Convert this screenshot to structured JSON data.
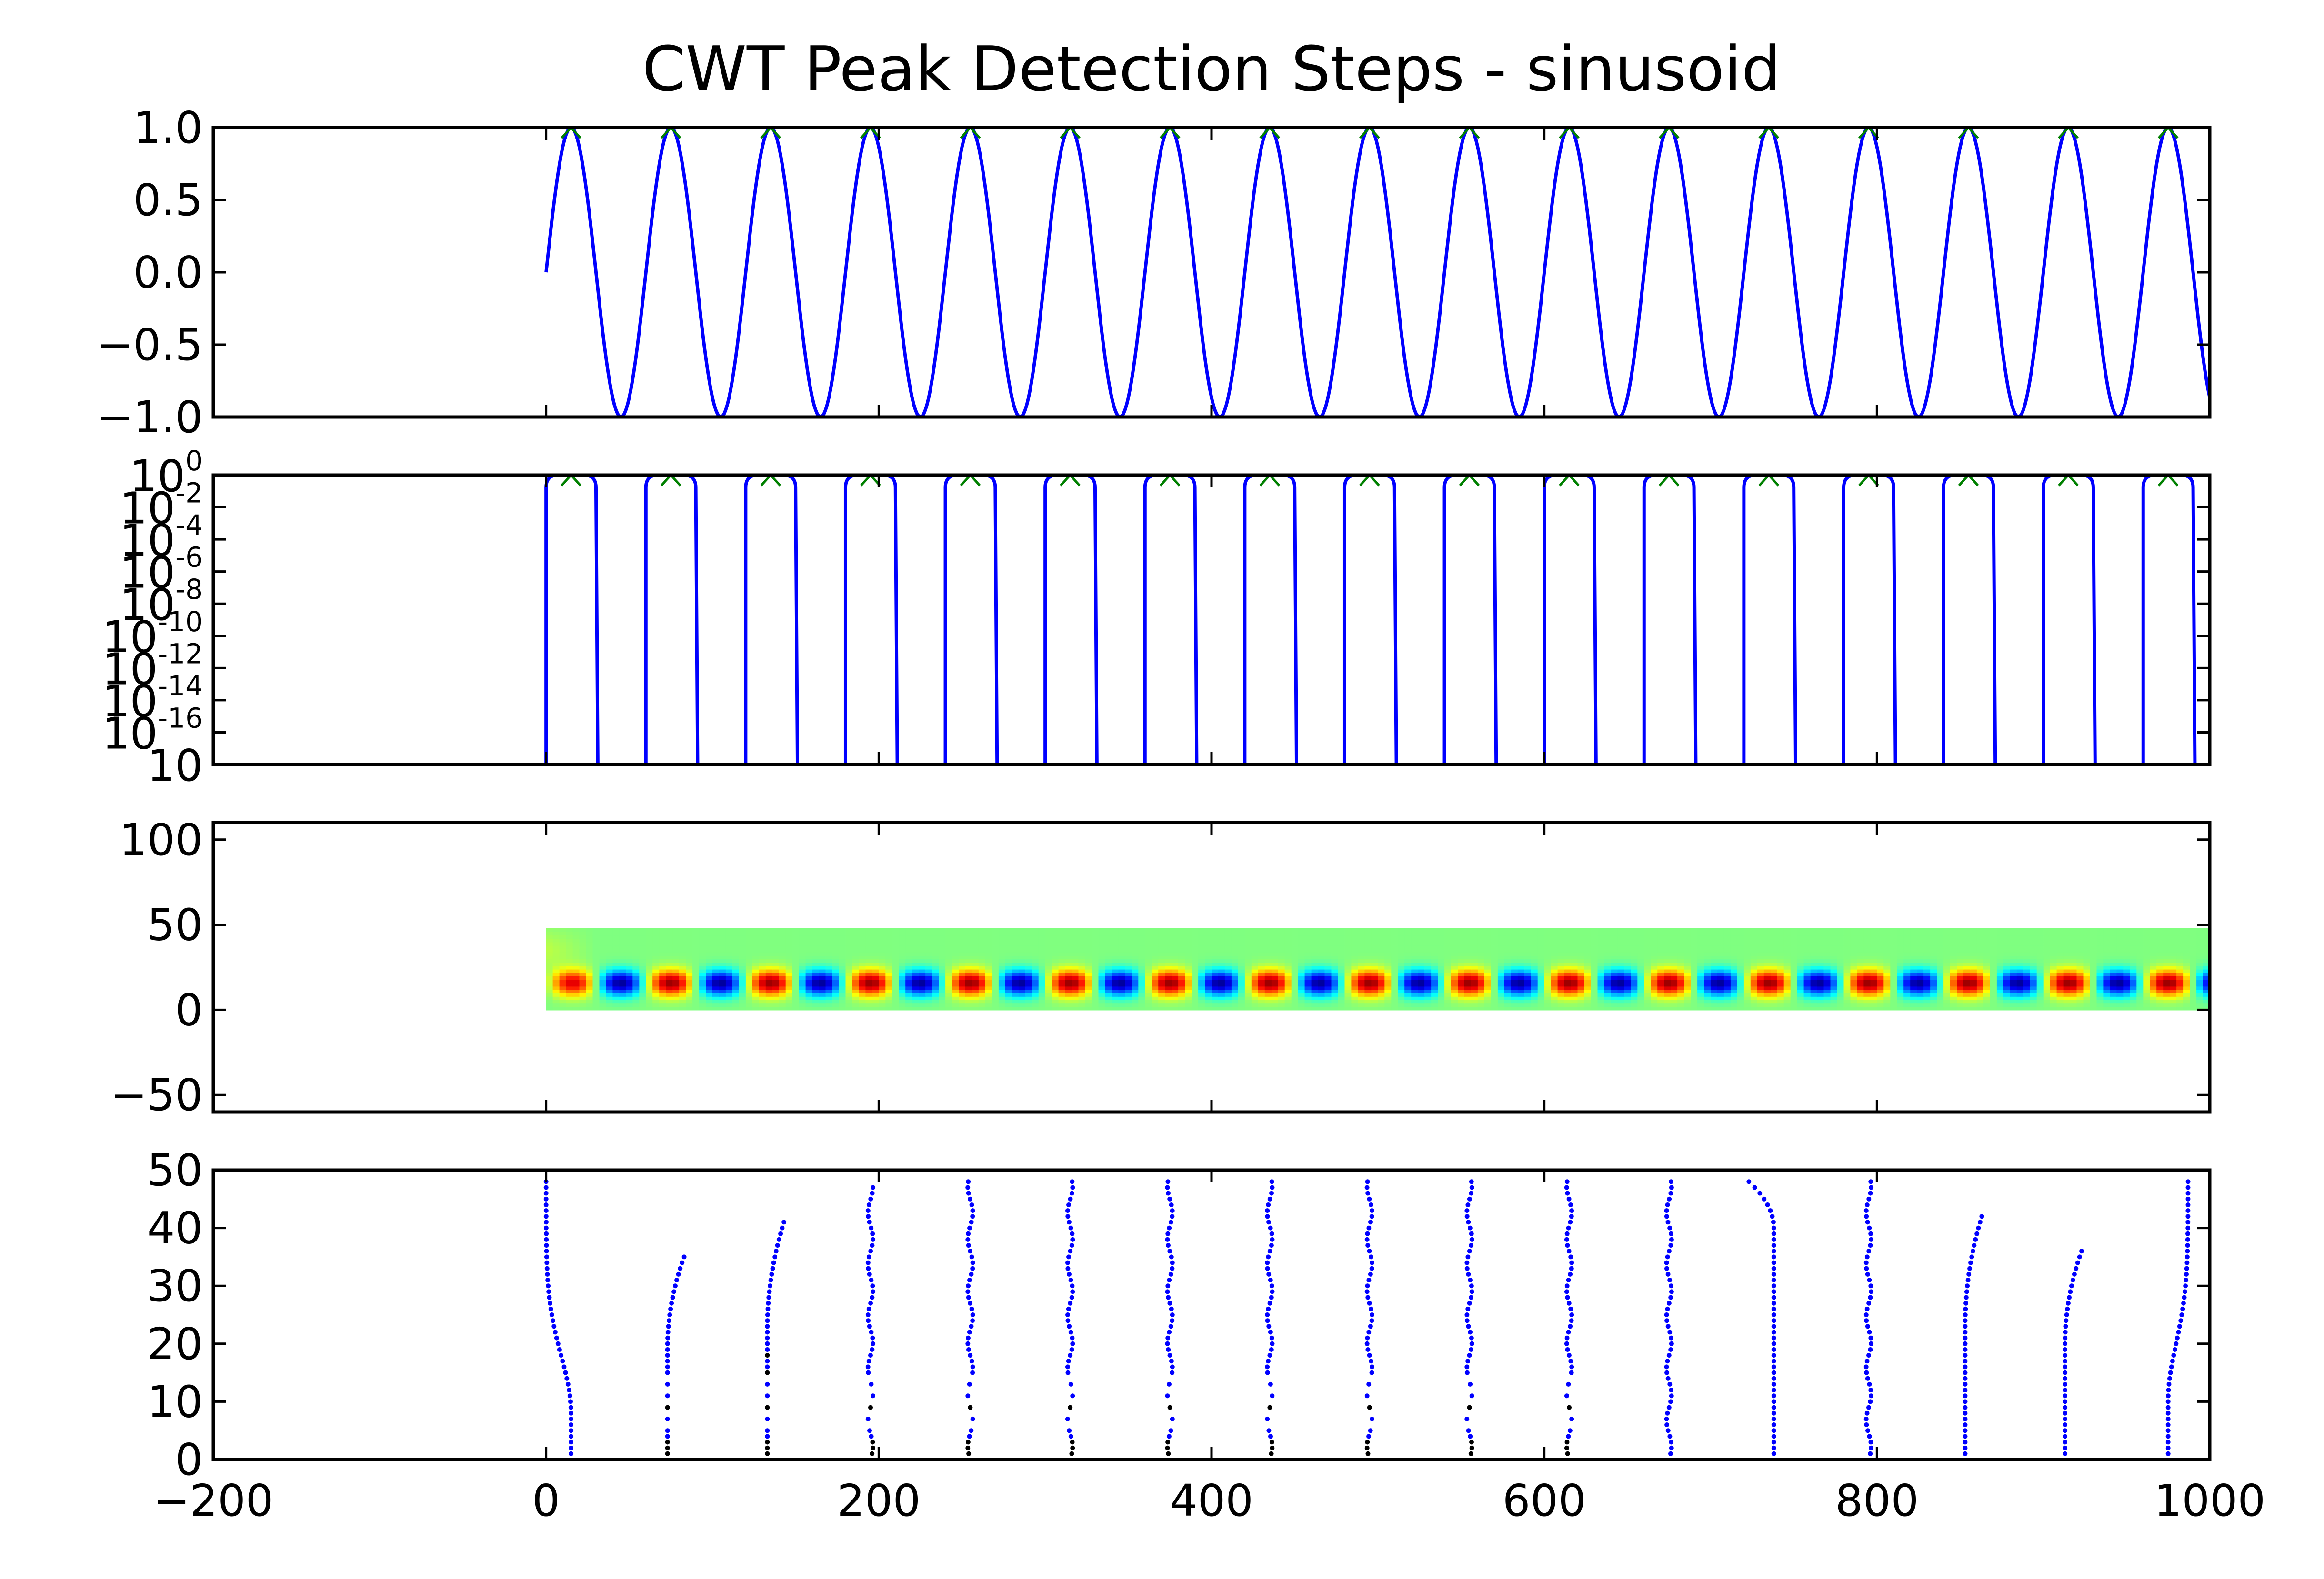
{
  "chart_data": [
    {
      "type": "line",
      "title": "CWT Peak Detection Steps - sinusoid",
      "signal": "sinusoid",
      "x_domain": [
        0,
        1000
      ],
      "period": 60,
      "amplitude": 1,
      "peak_markers_x": [
        15,
        75,
        135,
        195,
        255,
        315,
        375,
        435,
        495,
        555,
        615,
        675,
        735,
        795,
        855,
        915,
        975
      ],
      "xlim": [
        -200,
        1000
      ],
      "ylim": [
        -1.0,
        1.0
      ],
      "xticks": [
        "-200",
        "0",
        "200",
        "400",
        "600",
        "800",
        "1000"
      ],
      "yticks": [
        "1.0",
        "0.5",
        "0.0",
        "−0.5",
        "−1.0"
      ],
      "show_xticklabels": false,
      "line_color": "#0000ff",
      "marker_color": "#008000"
    },
    {
      "type": "line",
      "yscale": "log",
      "xlim": [
        -200,
        1000
      ],
      "ylim_exponents": [
        -18,
        0
      ],
      "ytick_base": "10",
      "ytick_exponents": [
        "0",
        "-2",
        "-4",
        "-6",
        "-8",
        "-10",
        "-12",
        "-14",
        "-16",
        ""
      ],
      "pulse_rises_x": [
        0,
        60,
        120,
        180,
        240,
        300,
        360,
        420,
        480,
        540,
        600,
        660,
        720,
        780,
        840,
        900,
        960
      ],
      "pulse_falls_x": [
        30,
        90,
        150,
        210,
        270,
        330,
        390,
        450,
        510,
        570,
        630,
        690,
        750,
        810,
        870,
        930,
        990
      ],
      "peak_markers_x": [
        15,
        75,
        135,
        195,
        255,
        315,
        375,
        435,
        495,
        555,
        615,
        675,
        735,
        795,
        855,
        915,
        975
      ],
      "show_xticklabels": false,
      "line_color": "#0000ff",
      "marker_color": "#008000"
    },
    {
      "type": "heatmap",
      "colormap": "jet",
      "extent_x": [
        0,
        1000
      ],
      "extent_y": [
        0,
        48
      ],
      "band_center_y": 16,
      "blob_spacing_x": 30,
      "xlim": [
        -200,
        1000
      ],
      "ylim": [
        -60,
        110
      ],
      "yticks": [
        "100",
        "50",
        "0",
        "−50"
      ],
      "show_xticklabels": false
    },
    {
      "type": "scatter",
      "xlim": [
        -200,
        1000
      ],
      "ylim": [
        0,
        50
      ],
      "xticks": [
        "−200",
        "0",
        "200",
        "400",
        "600",
        "800",
        "1000"
      ],
      "yticks": [
        "50",
        "40",
        "30",
        "20",
        "10",
        "0"
      ],
      "ridge_base_x": [
        15,
        75,
        135,
        195,
        255,
        315,
        375,
        435,
        495,
        555,
        615,
        675,
        735,
        795,
        855,
        915,
        975
      ],
      "ridge_top_y": [
        48,
        35,
        41,
        47,
        48,
        48,
        48,
        48,
        48,
        48,
        48,
        48,
        48,
        48,
        42,
        36,
        48
      ],
      "point_colors": [
        "#0000ff",
        "#000000"
      ]
    }
  ]
}
